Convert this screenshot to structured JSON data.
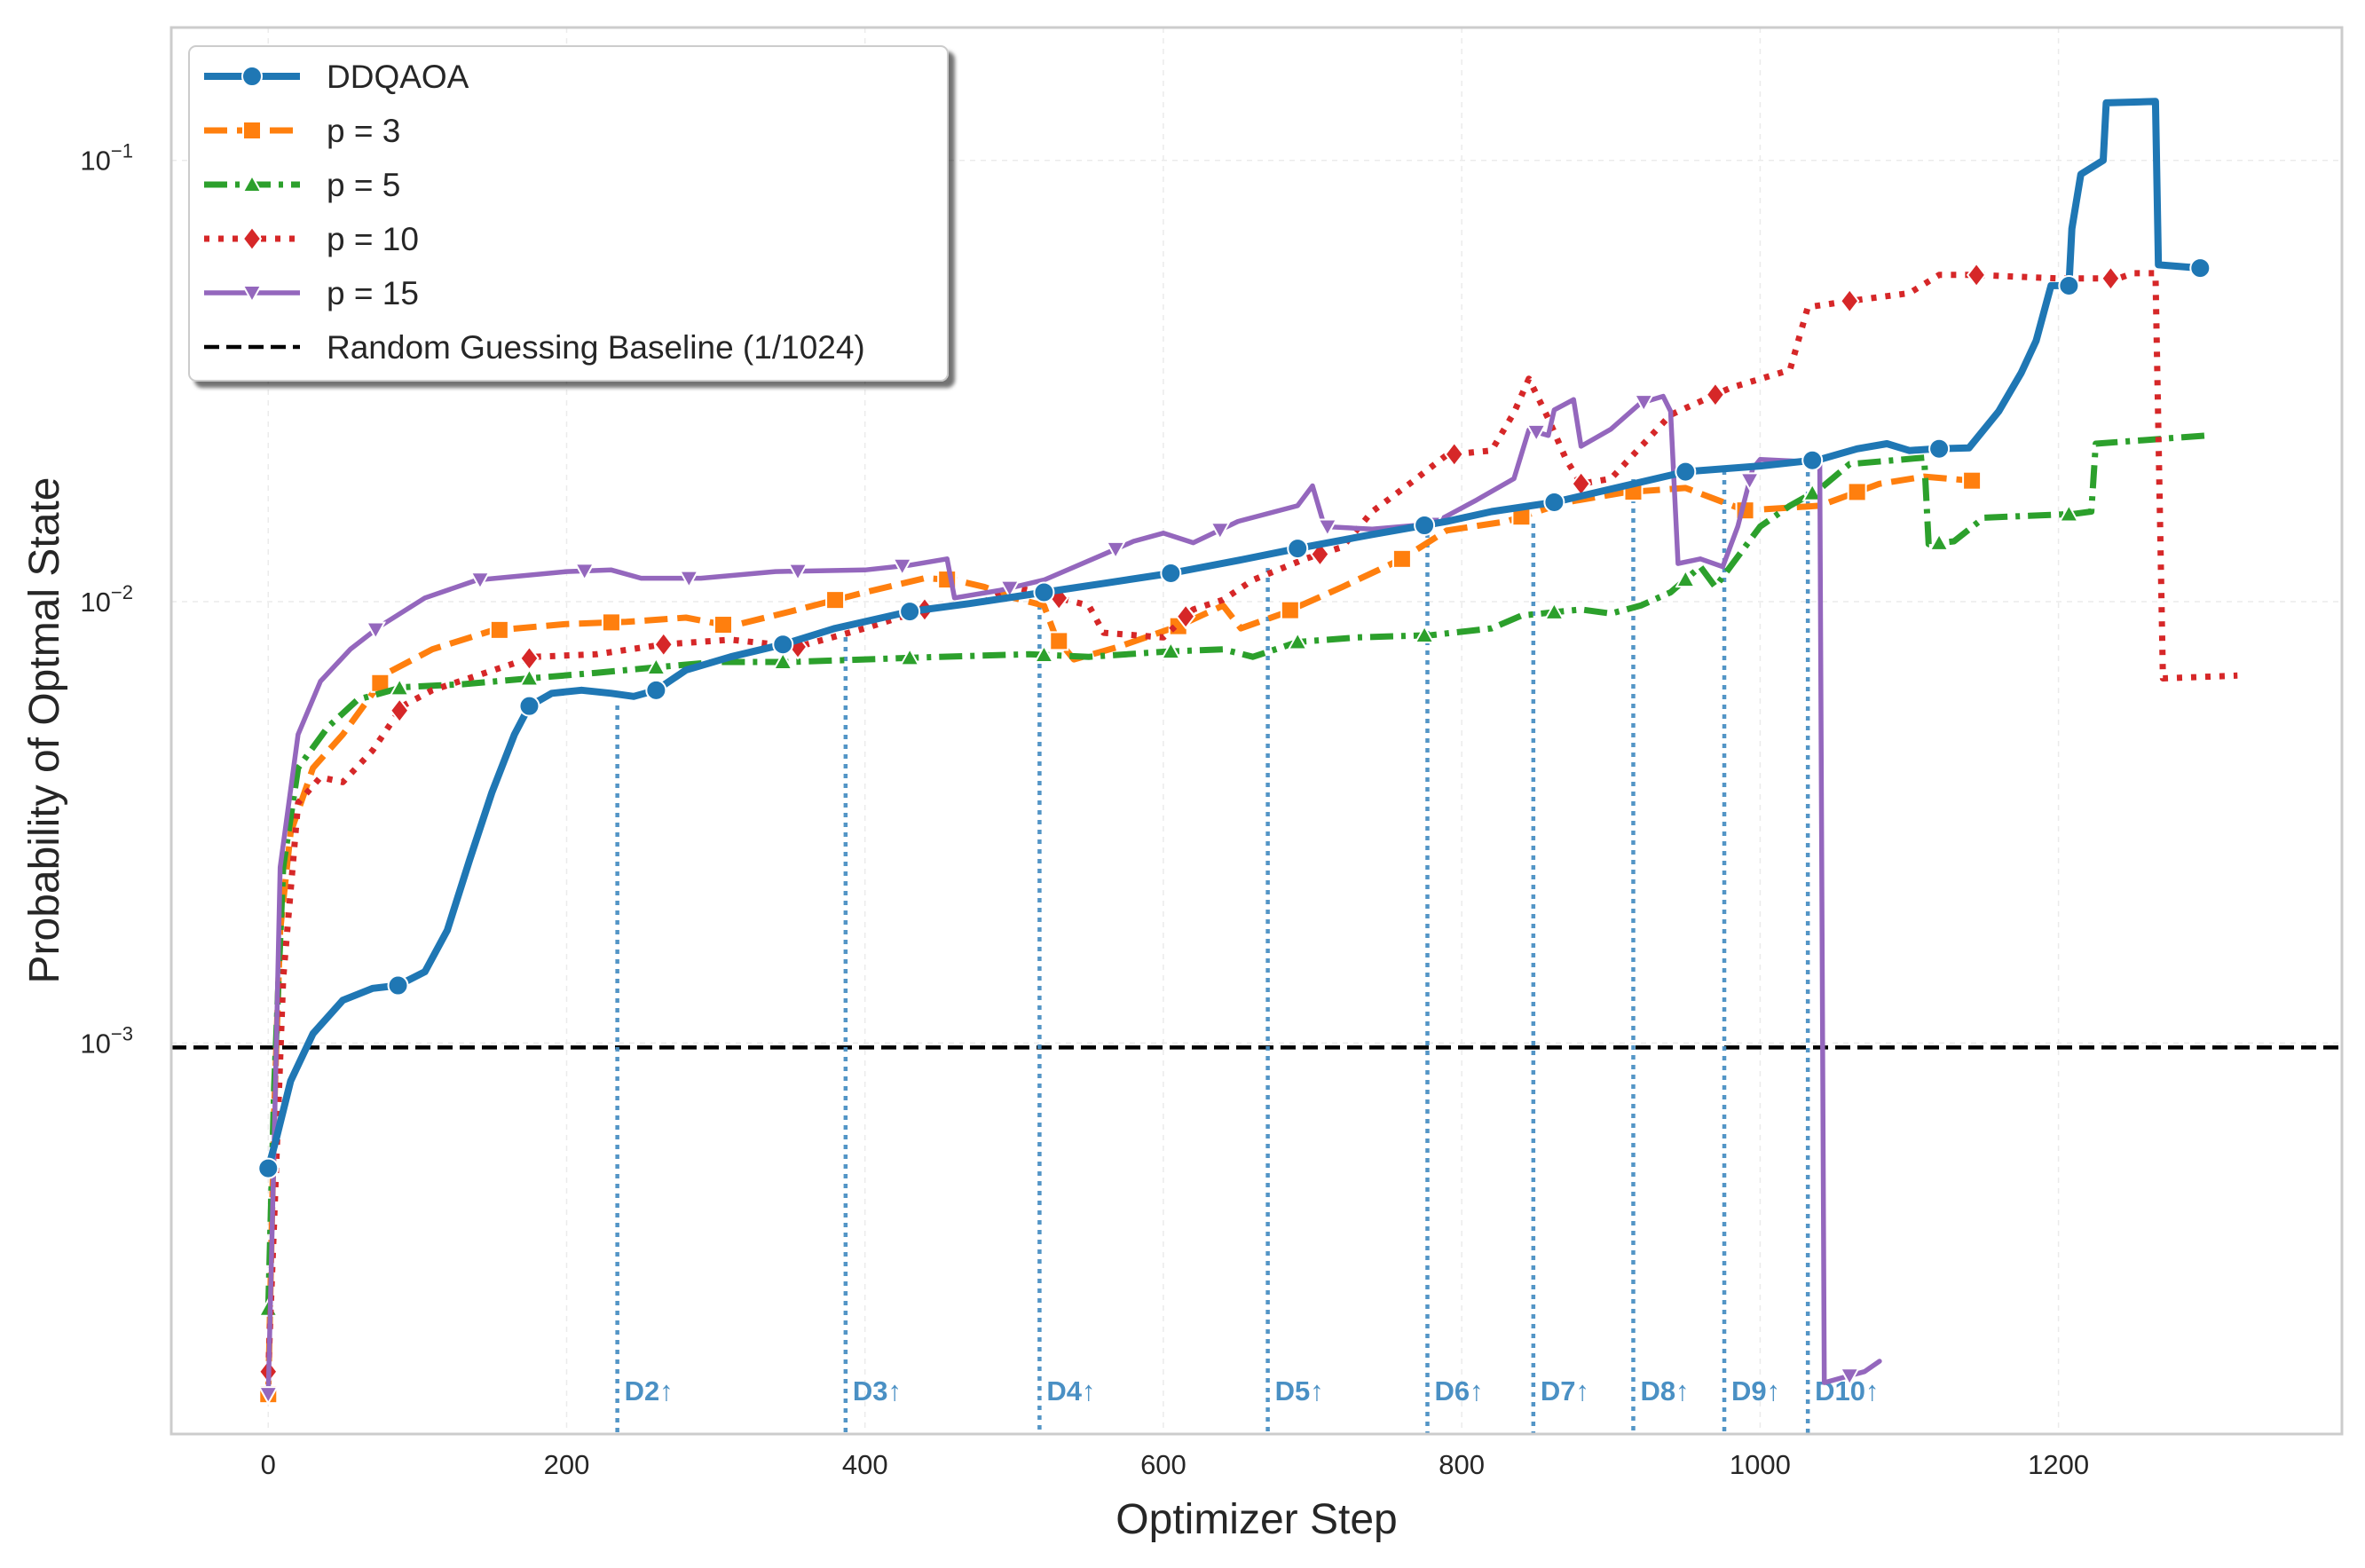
{
  "chart_data": {
    "type": "line",
    "title": "",
    "xlabel": "Optimizer Step",
    "ylabel": "Probability of Optmal State",
    "xlim": [
      -65,
      1390
    ],
    "ylim": [
      0.00013,
      0.2
    ],
    "yscale": "log",
    "grid": true,
    "legend_position": "top-left",
    "x_ticks": [
      {
        "value": 0,
        "label": "0"
      },
      {
        "value": 200,
        "label": "200"
      },
      {
        "value": 400,
        "label": "400"
      },
      {
        "value": 600,
        "label": "600"
      },
      {
        "value": 800,
        "label": "800"
      },
      {
        "value": 1000,
        "label": "1000"
      },
      {
        "value": 1200,
        "label": "1200"
      }
    ],
    "y_ticks": [
      {
        "value": 0.001,
        "base": "10",
        "exp": "−3"
      },
      {
        "value": 0.01,
        "base": "10",
        "exp": "−2"
      },
      {
        "value": 0.1,
        "base": "10",
        "exp": "−1"
      }
    ],
    "baseline": {
      "name": "Random Guessing Baseline (1/1024)",
      "value": 0.000977,
      "color": "#000000"
    },
    "depth_markers": [
      {
        "label": "D2↑",
        "x": 234
      },
      {
        "label": "D3↑",
        "x": 387
      },
      {
        "label": "D4↑",
        "x": 517
      },
      {
        "label": "D5↑",
        "x": 670
      },
      {
        "label": "D6↑",
        "x": 777
      },
      {
        "label": "D7↑",
        "x": 848
      },
      {
        "label": "D8↑",
        "x": 915
      },
      {
        "label": "D9↑",
        "x": 976
      },
      {
        "label": "D10↑",
        "x": 1032
      }
    ],
    "depth_marker_color": "#4a90c4",
    "series": [
      {
        "name": "DDQAOA",
        "color": "#1f77b4",
        "marker": "circle",
        "points": [
          [
            0,
            0.00052
          ],
          [
            5,
            0.0006
          ],
          [
            15,
            0.00082
          ],
          [
            30,
            0.00105
          ],
          [
            50,
            0.00125
          ],
          [
            70,
            0.00133
          ],
          [
            87,
            0.00135
          ],
          [
            105,
            0.00145
          ],
          [
            120,
            0.0018
          ],
          [
            135,
            0.0026
          ],
          [
            150,
            0.0037
          ],
          [
            165,
            0.005
          ],
          [
            175,
            0.0058
          ],
          [
            190,
            0.0062
          ],
          [
            210,
            0.0063
          ],
          [
            230,
            0.0062
          ],
          [
            245,
            0.0061
          ],
          [
            260,
            0.0063
          ],
          [
            280,
            0.007
          ],
          [
            310,
            0.0075
          ],
          [
            345,
            0.008
          ],
          [
            380,
            0.0087
          ],
          [
            430,
            0.0095
          ],
          [
            470,
            0.0099
          ],
          [
            520,
            0.0105
          ],
          [
            560,
            0.011
          ],
          [
            605,
            0.0116
          ],
          [
            650,
            0.0124
          ],
          [
            690,
            0.0132
          ],
          [
            740,
            0.0142
          ],
          [
            790,
            0.0152
          ],
          [
            820,
            0.016
          ],
          [
            862,
            0.0168
          ],
          [
            900,
            0.018
          ],
          [
            950,
            0.0197
          ],
          [
            1000,
            0.0203
          ],
          [
            1040,
            0.021
          ],
          [
            1065,
            0.0222
          ],
          [
            1085,
            0.0228
          ],
          [
            1100,
            0.022
          ],
          [
            1118,
            0.0222
          ],
          [
            1140,
            0.0223
          ],
          [
            1160,
            0.027
          ],
          [
            1175,
            0.033
          ],
          [
            1185,
            0.039
          ],
          [
            1195,
            0.052
          ],
          [
            1207,
            0.052
          ],
          [
            1209,
            0.07
          ],
          [
            1215,
            0.093
          ],
          [
            1230,
            0.1
          ],
          [
            1232,
            0.135
          ],
          [
            1265,
            0.136
          ],
          [
            1267,
            0.058
          ],
          [
            1295,
            0.057
          ]
        ],
        "markers_at": [
          0,
          87,
          175,
          260,
          345,
          430,
          520,
          605,
          690,
          775,
          862,
          950,
          1035,
          1120,
          1207,
          1295
        ]
      },
      {
        "name": "p = 3",
        "color": "#ff7f0e",
        "marker": "square",
        "points": [
          [
            0,
            0.00016
          ],
          [
            4,
            0.0007
          ],
          [
            8,
            0.0018
          ],
          [
            15,
            0.003
          ],
          [
            30,
            0.0042
          ],
          [
            50,
            0.005
          ],
          [
            80,
            0.0069
          ],
          [
            110,
            0.0078
          ],
          [
            150,
            0.0086
          ],
          [
            200,
            0.0089
          ],
          [
            240,
            0.009
          ],
          [
            280,
            0.0092
          ],
          [
            310,
            0.0088
          ],
          [
            350,
            0.0095
          ],
          [
            400,
            0.0105
          ],
          [
            440,
            0.0113
          ],
          [
            460,
            0.0112
          ],
          [
            480,
            0.0108
          ],
          [
            500,
            0.0102
          ],
          [
            520,
            0.0098
          ],
          [
            528,
            0.0083
          ],
          [
            540,
            0.0074
          ],
          [
            570,
            0.0079
          ],
          [
            610,
            0.0088
          ],
          [
            640,
            0.0098
          ],
          [
            652,
            0.0087
          ],
          [
            680,
            0.0094
          ],
          [
            720,
            0.0108
          ],
          [
            760,
            0.0125
          ],
          [
            790,
            0.0145
          ],
          [
            830,
            0.0152
          ],
          [
            870,
            0.0168
          ],
          [
            910,
            0.0177
          ],
          [
            950,
            0.0181
          ],
          [
            990,
            0.0161
          ],
          [
            1040,
            0.0165
          ],
          [
            1080,
            0.0185
          ],
          [
            1110,
            0.0192
          ],
          [
            1142,
            0.0188
          ]
        ],
        "markers_at": [
          0,
          75,
          155,
          230,
          305,
          380,
          455,
          530,
          610,
          685,
          760,
          840,
          915,
          990,
          1065,
          1142
        ]
      },
      {
        "name": "p = 5",
        "color": "#2ca02c",
        "marker": "triangle-up",
        "points": [
          [
            0,
            0.00025
          ],
          [
            4,
            0.0008
          ],
          [
            10,
            0.0025
          ],
          [
            20,
            0.0042
          ],
          [
            40,
            0.0052
          ],
          [
            60,
            0.006
          ],
          [
            90,
            0.0064
          ],
          [
            130,
            0.0065
          ],
          [
            175,
            0.0067
          ],
          [
            220,
            0.0069
          ],
          [
            260,
            0.0071
          ],
          [
            300,
            0.0073
          ],
          [
            350,
            0.0073
          ],
          [
            400,
            0.0074
          ],
          [
            450,
            0.0075
          ],
          [
            510,
            0.0076
          ],
          [
            550,
            0.0075
          ],
          [
            600,
            0.0077
          ],
          [
            640,
            0.0078
          ],
          [
            660,
            0.0075
          ],
          [
            690,
            0.0081
          ],
          [
            730,
            0.0083
          ],
          [
            780,
            0.0084
          ],
          [
            820,
            0.0087
          ],
          [
            840,
            0.0093
          ],
          [
            880,
            0.0096
          ],
          [
            900,
            0.0094
          ],
          [
            920,
            0.0098
          ],
          [
            940,
            0.0105
          ],
          [
            960,
            0.012
          ],
          [
            970,
            0.0108
          ],
          [
            1000,
            0.0148
          ],
          [
            1020,
            0.0165
          ],
          [
            1040,
            0.018
          ],
          [
            1060,
            0.0205
          ],
          [
            1110,
            0.0212
          ],
          [
            1113,
            0.0135
          ],
          [
            1130,
            0.0137
          ],
          [
            1150,
            0.0155
          ],
          [
            1210,
            0.0158
          ],
          [
            1222,
            0.016
          ],
          [
            1225,
            0.0228
          ],
          [
            1300,
            0.0238
          ]
        ],
        "markers_at": [
          0,
          88,
          175,
          260,
          345,
          430,
          520,
          605,
          690,
          775,
          862,
          950,
          1035,
          1120,
          1207
        ]
      },
      {
        "name": "p = 10",
        "color": "#d62728",
        "marker": "diamond",
        "points": [
          [
            0,
            0.00018
          ],
          [
            4,
            0.0004
          ],
          [
            10,
            0.0014
          ],
          [
            20,
            0.0035
          ],
          [
            35,
            0.004
          ],
          [
            50,
            0.0039
          ],
          [
            70,
            0.0046
          ],
          [
            90,
            0.0058
          ],
          [
            110,
            0.0063
          ],
          [
            140,
            0.0068
          ],
          [
            178,
            0.0075
          ],
          [
            220,
            0.0076
          ],
          [
            265,
            0.008
          ],
          [
            310,
            0.0082
          ],
          [
            355,
            0.0079
          ],
          [
            400,
            0.0087
          ],
          [
            440,
            0.0096
          ],
          [
            480,
            0.01
          ],
          [
            500,
            0.0108
          ],
          [
            520,
            0.0104
          ],
          [
            550,
            0.0098
          ],
          [
            560,
            0.0085
          ],
          [
            600,
            0.0083
          ],
          [
            620,
            0.0096
          ],
          [
            640,
            0.0101
          ],
          [
            660,
            0.0112
          ],
          [
            695,
            0.0125
          ],
          [
            720,
            0.0133
          ],
          [
            740,
            0.016
          ],
          [
            765,
            0.0185
          ],
          [
            790,
            0.0215
          ],
          [
            820,
            0.022
          ],
          [
            835,
            0.0268
          ],
          [
            845,
            0.032
          ],
          [
            858,
            0.026
          ],
          [
            870,
            0.021
          ],
          [
            880,
            0.0185
          ],
          [
            900,
            0.019
          ],
          [
            940,
            0.0265
          ],
          [
            980,
            0.0305
          ],
          [
            1020,
            0.0335
          ],
          [
            1032,
            0.0465
          ],
          [
            1060,
            0.048
          ],
          [
            1100,
            0.05
          ],
          [
            1120,
            0.055
          ],
          [
            1145,
            0.055
          ],
          [
            1200,
            0.054
          ],
          [
            1240,
            0.054
          ],
          [
            1250,
            0.0555
          ],
          [
            1265,
            0.0555
          ],
          [
            1270,
            0.0067
          ],
          [
            1320,
            0.0068
          ]
        ],
        "markers_at": [
          0,
          88,
          175,
          265,
          355,
          440,
          530,
          615,
          705,
          795,
          880,
          970,
          1060,
          1145,
          1235
        ]
      },
      {
        "name": "p = 15",
        "color": "#9467bd",
        "marker": "triangle-down",
        "points": [
          [
            0,
            0.00016
          ],
          [
            4,
            0.0006
          ],
          [
            8,
            0.0025
          ],
          [
            20,
            0.005
          ],
          [
            35,
            0.0066
          ],
          [
            55,
            0.0078
          ],
          [
            75,
            0.0088
          ],
          [
            105,
            0.0102
          ],
          [
            140,
            0.0112
          ],
          [
            200,
            0.0117
          ],
          [
            230,
            0.0118
          ],
          [
            250,
            0.0113
          ],
          [
            290,
            0.0113
          ],
          [
            340,
            0.0117
          ],
          [
            400,
            0.0118
          ],
          [
            430,
            0.0121
          ],
          [
            455,
            0.0125
          ],
          [
            460,
            0.0102
          ],
          [
            490,
            0.0106
          ],
          [
            520,
            0.0112
          ],
          [
            560,
            0.0128
          ],
          [
            580,
            0.0137
          ],
          [
            600,
            0.0143
          ],
          [
            620,
            0.0136
          ],
          [
            650,
            0.0152
          ],
          [
            690,
            0.0165
          ],
          [
            700,
            0.0183
          ],
          [
            708,
            0.0148
          ],
          [
            740,
            0.0146
          ],
          [
            780,
            0.015
          ],
          [
            810,
            0.017
          ],
          [
            835,
            0.019
          ],
          [
            845,
            0.0245
          ],
          [
            858,
            0.0238
          ],
          [
            862,
            0.0272
          ],
          [
            875,
            0.0287
          ],
          [
            880,
            0.0225
          ],
          [
            900,
            0.0246
          ],
          [
            920,
            0.0282
          ],
          [
            935,
            0.0292
          ],
          [
            940,
            0.027
          ],
          [
            945,
            0.0122
          ],
          [
            960,
            0.0125
          ],
          [
            975,
            0.012
          ],
          [
            985,
            0.0148
          ],
          [
            995,
            0.02
          ],
          [
            1000,
            0.021
          ],
          [
            1040,
            0.0207
          ],
          [
            1043,
            0.00017
          ],
          [
            1070,
            0.00018
          ],
          [
            1080,
            0.00019
          ]
        ],
        "markers_at": [
          0,
          72,
          142,
          212,
          282,
          355,
          425,
          497,
          568,
          638,
          710,
          780,
          850,
          922,
          993,
          1060
        ]
      }
    ]
  }
}
